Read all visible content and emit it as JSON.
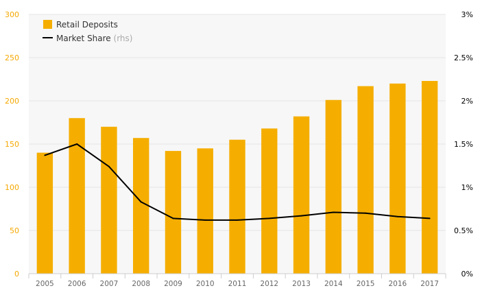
{
  "chart_data": {
    "type": "bar",
    "categories": [
      "2005",
      "2006",
      "2007",
      "2008",
      "2009",
      "2010",
      "2011",
      "2012",
      "2013",
      "2014",
      "2015",
      "2016",
      "2017"
    ],
    "series": [
      {
        "name": "Retail Deposits",
        "type": "bar",
        "axis": "left",
        "color": "#f5ae00",
        "values": [
          140,
          180,
          170,
          157,
          142,
          145,
          155,
          168,
          182,
          201,
          217,
          220,
          223
        ]
      },
      {
        "name": "Market Share",
        "type": "line",
        "axis": "right",
        "color": "#000000",
        "values": [
          1.37,
          1.5,
          1.24,
          0.83,
          0.64,
          0.62,
          0.62,
          0.64,
          0.67,
          0.71,
          0.7,
          0.66,
          0.64
        ]
      }
    ],
    "legend": {
      "position": "top-left",
      "items": [
        {
          "label": "Retail Deposits",
          "note": ""
        },
        {
          "label": "Market Share",
          "note": "(rhs)"
        }
      ]
    },
    "left_axis": {
      "ylim": [
        0,
        300
      ],
      "ticks": [
        0,
        50,
        100,
        150,
        200,
        250,
        300
      ],
      "tick_labels": [
        "0",
        "50",
        "100",
        "150",
        "200",
        "250",
        "300"
      ],
      "color": "#f5a800"
    },
    "right_axis": {
      "ylim": [
        0,
        3
      ],
      "ticks": [
        0,
        0.5,
        1,
        1.5,
        2,
        2.5,
        3
      ],
      "tick_labels": [
        "0%",
        "0.5%",
        "1%",
        "1.5%",
        "2%",
        "2.5%",
        "3%"
      ],
      "color": "#000000"
    },
    "grid": true,
    "background": "#f7f7f7",
    "gridline_color": "#e6e6e6"
  }
}
